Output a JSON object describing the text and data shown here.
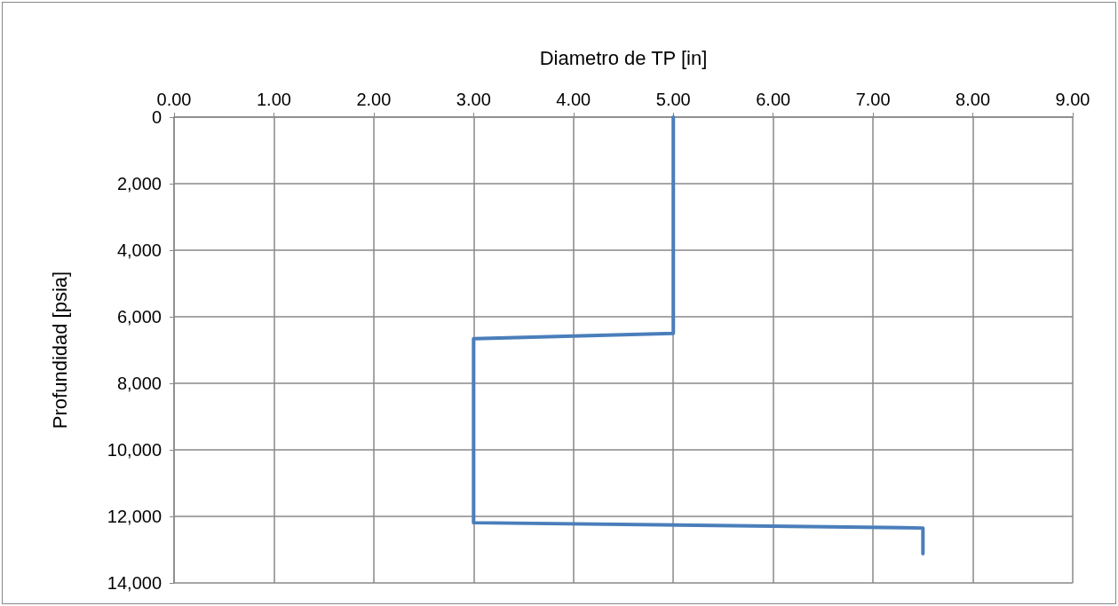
{
  "chart_data": {
    "type": "line",
    "xlabel": "Diametro de TP [in]",
    "ylabel": "Profundidad [psia]",
    "x": [
      5.0,
      5.0,
      3.0,
      3.0,
      7.5,
      7.5
    ],
    "series": [
      {
        "color": "#4a7ebb",
        "values": [
          0,
          6500,
          6660,
          12190,
          12350,
          13120
        ]
      }
    ],
    "xlim": [
      0,
      9
    ],
    "xticks": [
      {
        "value": 0,
        "label": "0.00"
      },
      {
        "value": 1,
        "label": "1.00"
      },
      {
        "value": 2,
        "label": "2.00"
      },
      {
        "value": 3,
        "label": "3.00"
      },
      {
        "value": 4,
        "label": "4.00"
      },
      {
        "value": 5,
        "label": "5.00"
      },
      {
        "value": 6,
        "label": "6.00"
      },
      {
        "value": 7,
        "label": "7.00"
      },
      {
        "value": 8,
        "label": "8.00"
      },
      {
        "value": 9,
        "label": "9.00"
      }
    ],
    "ylim": [
      14000,
      0
    ],
    "yticks": [
      0,
      {
        "value": 2000,
        "label": "2,000"
      },
      {
        "value": 4000,
        "label": "4,000"
      },
      {
        "value": 6000,
        "label": "6,000"
      },
      {
        "value": 8000,
        "label": "8,000"
      },
      {
        "value": 10000,
        "label": "10,000"
      },
      {
        "value": 12000,
        "label": "12,000"
      },
      {
        "value": 14000,
        "label": "14,000"
      }
    ],
    "grid": true,
    "marker": "none",
    "line_style": "solid"
  }
}
